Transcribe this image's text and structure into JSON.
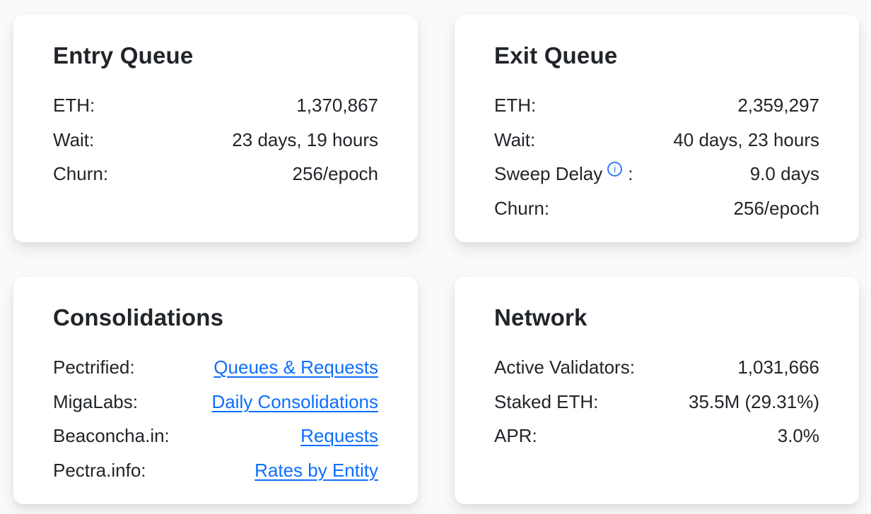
{
  "colors": {
    "page_background": "#fafafa",
    "card_background": "#ffffff",
    "text": "#212529",
    "link": "#0d6efd",
    "info_icon": "#2e7cf6"
  },
  "icons": {
    "info_glyph": "i"
  },
  "cards": [
    {
      "title": "Entry Queue",
      "rows": [
        {
          "label": "ETH:",
          "value": "1,370,867"
        },
        {
          "label": "Wait:",
          "value": "23 days, 19 hours"
        },
        {
          "label": "Churn:",
          "value": "256/epoch"
        }
      ]
    },
    {
      "title": "Exit Queue",
      "rows": [
        {
          "label": "ETH:",
          "value": "2,359,297"
        },
        {
          "label": "Wait:",
          "value": "40 days, 23 hours"
        },
        {
          "label": "Sweep Delay",
          "label_suffix": ":",
          "has_info_icon": true,
          "value": "9.0 days"
        },
        {
          "label": "Churn:",
          "value": "256/epoch"
        }
      ]
    },
    {
      "title": "Consolidations",
      "rows": [
        {
          "label": "Pectrified:",
          "link": "Queues & Requests"
        },
        {
          "label": "MigaLabs:",
          "link": "Daily Consolidations"
        },
        {
          "label": "Beaconcha.in:",
          "link": "Requests"
        },
        {
          "label": "Pectra.info:",
          "link": "Rates by Entity"
        }
      ]
    },
    {
      "title": "Network",
      "rows": [
        {
          "label": "Active Validators:",
          "value": "1,031,666"
        },
        {
          "label": "Staked ETH:",
          "value": "35.5M (29.31%)"
        },
        {
          "label": "APR:",
          "value": "3.0%"
        }
      ]
    }
  ]
}
